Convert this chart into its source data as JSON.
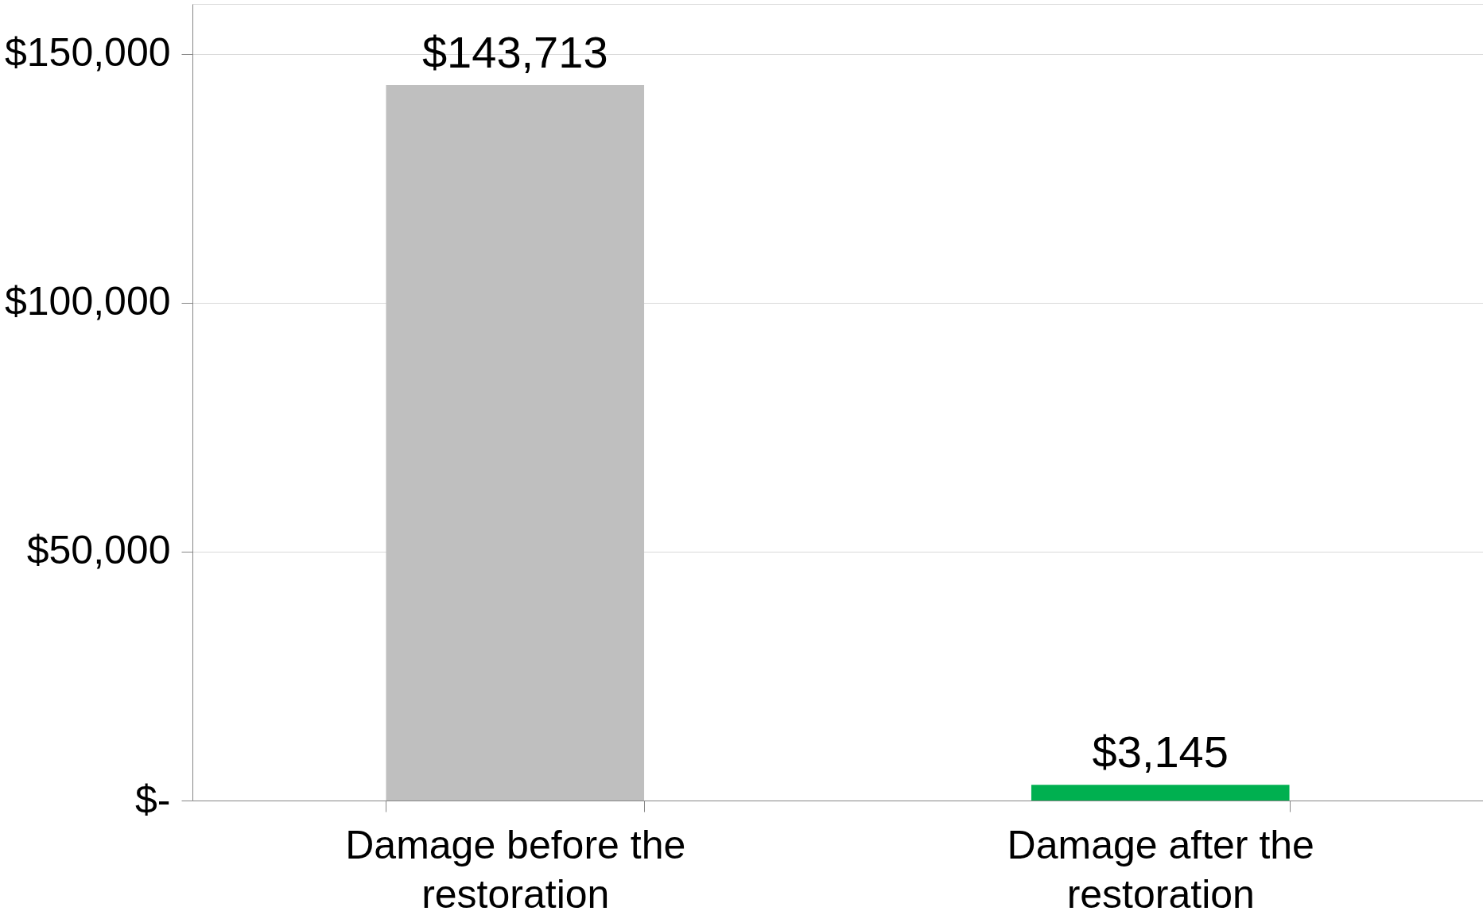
{
  "chart_data": {
    "type": "bar",
    "categories": [
      "Damage before the restoration",
      "Damage after the restoration"
    ],
    "values": [
      143713,
      3145
    ],
    "colors": [
      "#bfbfbf",
      "#00b050"
    ],
    "value_labels": [
      "$143,713",
      "$3,145"
    ],
    "ylim": [
      0,
      160000
    ],
    "yticks": [
      {
        "value": 0,
        "label": "$-"
      },
      {
        "value": 50000,
        "label": "$50,000"
      },
      {
        "value": 100000,
        "label": "$100,000"
      },
      {
        "value": 150000,
        "label": "$150,000"
      }
    ],
    "grid": "y"
  }
}
